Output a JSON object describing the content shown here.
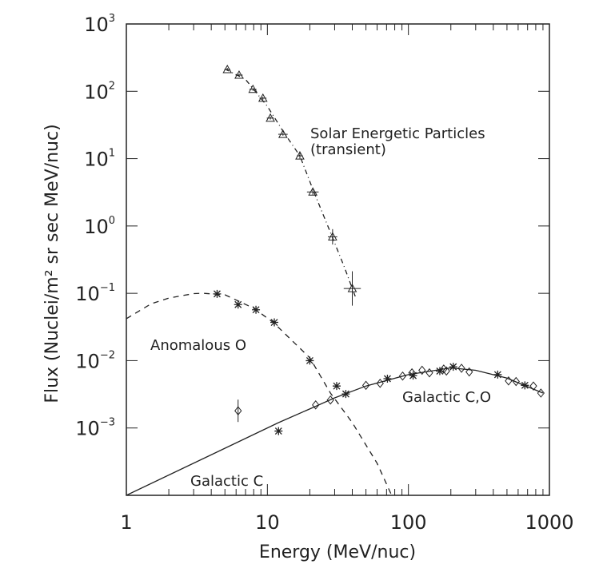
{
  "chart_data": {
    "type": "scatter",
    "title": "",
    "xlabel": "Energy (MeV/nuc)",
    "ylabel": "Flux (Nuclei/m² sr sec MeV/nuc)",
    "xscale": "log",
    "yscale": "log",
    "xlim": [
      1,
      1000
    ],
    "ylim": [
      0.0001,
      1000
    ],
    "grid": false,
    "x_ticks": [
      {
        "value": 1,
        "label": "1"
      },
      {
        "value": 10,
        "label": "10"
      },
      {
        "value": 100,
        "label": "100"
      },
      {
        "value": 1000,
        "label": "1000"
      }
    ],
    "y_ticks": [
      {
        "value": 1000,
        "base": "10",
        "exp": "3"
      },
      {
        "value": 100,
        "base": "10",
        "exp": "2"
      },
      {
        "value": 10,
        "base": "10",
        "exp": "1"
      },
      {
        "value": 1,
        "base": "10",
        "exp": "0"
      },
      {
        "value": 0.1,
        "base": "10",
        "exp": "−1"
      },
      {
        "value": 0.01,
        "base": "10",
        "exp": "−2"
      },
      {
        "value": 0.001,
        "base": "10",
        "exp": "−3"
      }
    ],
    "annotations": [
      {
        "id": "sep1",
        "text": "Solar Energetic Particles"
      },
      {
        "id": "sep2",
        "text": "(transient)"
      },
      {
        "id": "anom",
        "text": "Anomalous O"
      },
      {
        "id": "galc",
        "text": "Galactic C"
      },
      {
        "id": "galco",
        "text": "Galactic C,O"
      }
    ],
    "series": [
      {
        "id": "sep",
        "marker": "triangle",
        "line": "dashdot",
        "points": [
          [
            5.2,
            211
          ],
          [
            6.3,
            174
          ],
          [
            7.9,
            107
          ],
          [
            9.3,
            79
          ],
          [
            10.5,
            40
          ],
          [
            12.9,
            23
          ],
          [
            17,
            11
          ],
          [
            21,
            3.2
          ],
          [
            29,
            0.69
          ],
          [
            40,
            0.118
          ]
        ],
        "x_err_factor": [
          1.05,
          1.06,
          1.06,
          1.06,
          1.06,
          1.08,
          1.05,
          1.1,
          1.08,
          1.15
        ],
        "y_err_factor": [
          1.05,
          1.05,
          1.05,
          1.05,
          1.05,
          1.05,
          1.1,
          1.1,
          1.3,
          1.8
        ],
        "curve": [
          [
            5,
            215
          ],
          [
            7,
            150
          ],
          [
            10,
            60
          ],
          [
            13,
            25
          ],
          [
            17,
            11
          ],
          [
            21,
            3.5
          ],
          [
            28,
            0.8
          ],
          [
            35,
            0.25
          ],
          [
            42,
            0.09
          ]
        ]
      },
      {
        "id": "anomalous-o",
        "marker": "asterisk",
        "line": "dashed",
        "points": [
          [
            4.4,
            0.098
          ],
          [
            6.2,
            0.068
          ],
          [
            8.3,
            0.057
          ],
          [
            11.2,
            0.037
          ],
          [
            20,
            0.01
          ],
          [
            31,
            0.0042
          ]
        ],
        "curve": [
          [
            1,
            0.042
          ],
          [
            1.5,
            0.07
          ],
          [
            2,
            0.085
          ],
          [
            3,
            0.099
          ],
          [
            3.5,
            0.1
          ],
          [
            5,
            0.095
          ],
          [
            8,
            0.06
          ],
          [
            11,
            0.037
          ],
          [
            20,
            0.011
          ],
          [
            28,
            0.0033
          ],
          [
            40,
            0.0012
          ],
          [
            60,
            0.0003
          ],
          [
            76,
            0.0001
          ]
        ]
      },
      {
        "id": "galactic",
        "marker": "diamond/asterisk",
        "line": "solid",
        "points": [
          [
            6.2,
            0.0018
          ],
          [
            12,
            0.0009
          ],
          [
            22,
            0.0022
          ],
          [
            28,
            0.0026
          ],
          [
            36,
            0.0032
          ],
          [
            50,
            0.0043
          ],
          [
            63,
            0.0046
          ],
          [
            71,
            0.0054
          ],
          [
            91,
            0.0059
          ],
          [
            106,
            0.0066
          ],
          [
            108,
            0.006
          ],
          [
            125,
            0.0072
          ],
          [
            141,
            0.0066
          ],
          [
            167,
            0.007
          ],
          [
            178,
            0.0075
          ],
          [
            186,
            0.007
          ],
          [
            208,
            0.0081
          ],
          [
            238,
            0.0077
          ],
          [
            270,
            0.0068
          ],
          [
            430,
            0.0062
          ],
          [
            513,
            0.005
          ],
          [
            580,
            0.0049
          ],
          [
            670,
            0.0043
          ],
          [
            770,
            0.0042
          ],
          [
            870,
            0.0033
          ]
        ],
        "curve": [
          [
            1,
            0.0001
          ],
          [
            12,
            0.0012
          ],
          [
            22,
            0.0021
          ],
          [
            30,
            0.0028
          ],
          [
            50,
            0.0042
          ],
          [
            100,
            0.0062
          ],
          [
            200,
            0.0078
          ],
          [
            300,
            0.0072
          ],
          [
            500,
            0.0055
          ],
          [
            900,
            0.0033
          ]
        ]
      }
    ]
  }
}
